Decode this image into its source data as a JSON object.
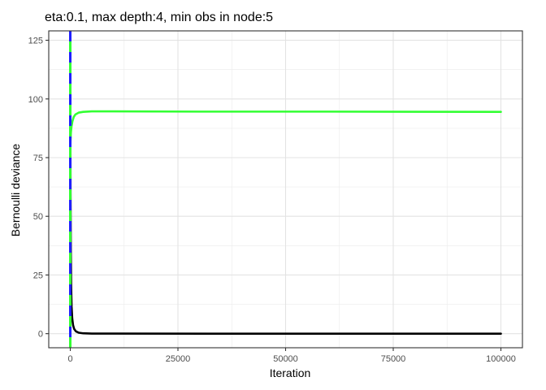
{
  "chart_data": {
    "type": "line",
    "title": "eta:0.1, max depth:4, min obs in node:5",
    "xlabel": "Iteration",
    "ylabel": "Bernoulli deviance",
    "xlim": [
      -5000,
      105000
    ],
    "ylim": [
      -6,
      129
    ],
    "xticks": [
      0,
      25000,
      50000,
      75000,
      100000
    ],
    "yticks": [
      0,
      25,
      50,
      75,
      100,
      125
    ],
    "grid": true,
    "legend": "none",
    "series": [
      {
        "color": "#33ff33",
        "style": "solid",
        "x": [
          1,
          50,
          150,
          300,
          500,
          800,
          1200,
          2000,
          3000,
          5000,
          10000,
          30000,
          60000,
          100000
        ],
        "y": [
          76,
          82,
          86,
          88.5,
          90.5,
          92.3,
          93.4,
          94.2,
          94.5,
          94.7,
          94.7,
          94.6,
          94.6,
          94.5
        ]
      },
      {
        "color": "#000000",
        "style": "solid",
        "x": [
          1,
          20,
          60,
          120,
          200,
          300,
          450,
          650,
          900,
          1300,
          2000,
          3000,
          5000,
          10000,
          50000,
          100000
        ],
        "y": [
          125,
          95,
          60,
          35,
          20,
          11.5,
          6.5,
          3.6,
          2,
          1,
          0.4,
          0.15,
          0.05,
          0.02,
          0,
          0
        ]
      }
    ],
    "vlines": [
      {
        "x": 0,
        "colors": [
          "#1f1fff",
          "#33ff33"
        ],
        "style": "dashed"
      }
    ]
  }
}
